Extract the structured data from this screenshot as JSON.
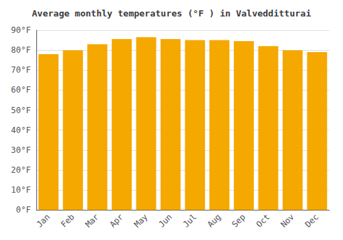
{
  "chart_data": {
    "type": "bar",
    "title": "Average monthly temperatures (°F ) in Valvedditturai",
    "categories": [
      "Jan",
      "Feb",
      "Mar",
      "Apr",
      "May",
      "Jun",
      "Jul",
      "Aug",
      "Sep",
      "Oct",
      "Nov",
      "Dec"
    ],
    "values": [
      78,
      80,
      83,
      85.5,
      86.5,
      85.5,
      85,
      85,
      84.5,
      82,
      80,
      79
    ],
    "color": "#F5A800",
    "ylim": [
      0,
      90
    ],
    "yticks": [
      {
        "value": 0,
        "label": "0°F"
      },
      {
        "value": 10,
        "label": "10°F"
      },
      {
        "value": 20,
        "label": "20°F"
      },
      {
        "value": 30,
        "label": "30°F"
      },
      {
        "value": 40,
        "label": "40°F"
      },
      {
        "value": 50,
        "label": "50°F"
      },
      {
        "value": 60,
        "label": "60°F"
      },
      {
        "value": 70,
        "label": "70°F"
      },
      {
        "value": 80,
        "label": "80°F"
      },
      {
        "value": 90,
        "label": "90°F"
      }
    ],
    "grid": true
  }
}
